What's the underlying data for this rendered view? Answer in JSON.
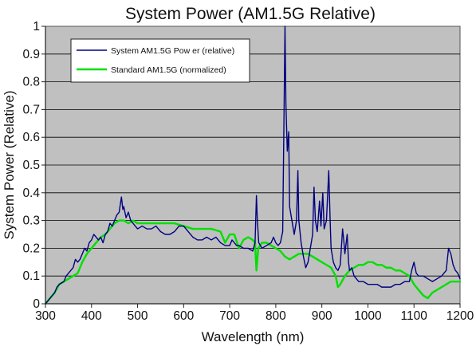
{
  "chart_data": {
    "type": "line",
    "title": "System Power (AM1.5G Relative)",
    "xlabel": "Wavelength (nm)",
    "ylabel": "System Power (Relative)",
    "xlim": [
      300,
      1200
    ],
    "ylim": [
      0,
      1
    ],
    "x_ticks": [
      300,
      400,
      500,
      600,
      700,
      800,
      900,
      1000,
      1100,
      1200
    ],
    "x_tick_labels": [
      "300",
      "400",
      "500",
      "600",
      "700",
      "800",
      "900",
      "1000",
      "1100",
      "1200"
    ],
    "y_ticks": [
      0,
      0.1,
      0.2,
      0.3,
      0.4,
      0.5,
      0.6,
      0.7,
      0.8,
      0.9,
      1
    ],
    "y_tick_labels": [
      "0",
      "0.1",
      "0.2",
      "0.3",
      "0.4",
      "0.5",
      "0.6",
      "0.7",
      "0.8",
      "0.9",
      "1"
    ],
    "grid": "horizontal",
    "plot_background": "#c0c0c0",
    "legend_position": "top-left",
    "series": [
      {
        "name": "System AM1.5G Pow er (relative)",
        "color": "#000080",
        "points": [
          [
            300,
            0.0
          ],
          [
            305,
            0.01
          ],
          [
            310,
            0.02
          ],
          [
            315,
            0.03
          ],
          [
            320,
            0.04
          ],
          [
            325,
            0.06
          ],
          [
            330,
            0.07
          ],
          [
            335,
            0.075
          ],
          [
            340,
            0.08
          ],
          [
            345,
            0.1
          ],
          [
            350,
            0.11
          ],
          [
            355,
            0.12
          ],
          [
            360,
            0.13
          ],
          [
            365,
            0.16
          ],
          [
            370,
            0.15
          ],
          [
            375,
            0.16
          ],
          [
            380,
            0.18
          ],
          [
            385,
            0.2
          ],
          [
            390,
            0.19
          ],
          [
            395,
            0.22
          ],
          [
            400,
            0.23
          ],
          [
            405,
            0.25
          ],
          [
            410,
            0.24
          ],
          [
            415,
            0.23
          ],
          [
            420,
            0.24
          ],
          [
            425,
            0.22
          ],
          [
            430,
            0.25
          ],
          [
            435,
            0.26
          ],
          [
            440,
            0.29
          ],
          [
            445,
            0.28
          ],
          [
            450,
            0.3
          ],
          [
            455,
            0.32
          ],
          [
            460,
            0.33
          ],
          [
            465,
            0.385
          ],
          [
            468,
            0.34
          ],
          [
            470,
            0.35
          ],
          [
            475,
            0.31
          ],
          [
            480,
            0.33
          ],
          [
            485,
            0.3
          ],
          [
            490,
            0.29
          ],
          [
            495,
            0.28
          ],
          [
            500,
            0.27
          ],
          [
            510,
            0.28
          ],
          [
            520,
            0.27
          ],
          [
            530,
            0.27
          ],
          [
            540,
            0.28
          ],
          [
            550,
            0.26
          ],
          [
            560,
            0.25
          ],
          [
            570,
            0.25
          ],
          [
            580,
            0.26
          ],
          [
            590,
            0.28
          ],
          [
            600,
            0.28
          ],
          [
            610,
            0.26
          ],
          [
            620,
            0.24
          ],
          [
            630,
            0.23
          ],
          [
            640,
            0.23
          ],
          [
            650,
            0.24
          ],
          [
            660,
            0.23
          ],
          [
            670,
            0.24
          ],
          [
            680,
            0.22
          ],
          [
            690,
            0.21
          ],
          [
            700,
            0.21
          ],
          [
            705,
            0.23
          ],
          [
            710,
            0.22
          ],
          [
            715,
            0.21
          ],
          [
            720,
            0.21
          ],
          [
            730,
            0.2
          ],
          [
            740,
            0.2
          ],
          [
            750,
            0.19
          ],
          [
            755,
            0.22
          ],
          [
            758,
            0.39
          ],
          [
            760,
            0.3
          ],
          [
            763,
            0.22
          ],
          [
            770,
            0.2
          ],
          [
            780,
            0.21
          ],
          [
            790,
            0.22
          ],
          [
            795,
            0.24
          ],
          [
            800,
            0.22
          ],
          [
            805,
            0.21
          ],
          [
            810,
            0.22
          ],
          [
            815,
            0.26
          ],
          [
            818,
            0.7
          ],
          [
            820,
            1.0
          ],
          [
            822,
            0.72
          ],
          [
            825,
            0.55
          ],
          [
            828,
            0.62
          ],
          [
            830,
            0.35
          ],
          [
            835,
            0.3
          ],
          [
            840,
            0.25
          ],
          [
            845,
            0.3
          ],
          [
            848,
            0.48
          ],
          [
            850,
            0.3
          ],
          [
            855,
            0.22
          ],
          [
            860,
            0.17
          ],
          [
            865,
            0.13
          ],
          [
            870,
            0.15
          ],
          [
            875,
            0.2
          ],
          [
            880,
            0.25
          ],
          [
            883,
            0.42
          ],
          [
            886,
            0.3
          ],
          [
            890,
            0.26
          ],
          [
            895,
            0.37
          ],
          [
            898,
            0.28
          ],
          [
            902,
            0.4
          ],
          [
            905,
            0.27
          ],
          [
            910,
            0.3
          ],
          [
            915,
            0.48
          ],
          [
            918,
            0.3
          ],
          [
            920,
            0.2
          ],
          [
            925,
            0.15
          ],
          [
            930,
            0.13
          ],
          [
            935,
            0.12
          ],
          [
            940,
            0.14
          ],
          [
            945,
            0.27
          ],
          [
            948,
            0.22
          ],
          [
            950,
            0.18
          ],
          [
            955,
            0.25
          ],
          [
            958,
            0.15
          ],
          [
            960,
            0.12
          ],
          [
            965,
            0.13
          ],
          [
            970,
            0.1
          ],
          [
            975,
            0.09
          ],
          [
            980,
            0.08
          ],
          [
            990,
            0.08
          ],
          [
            1000,
            0.07
          ],
          [
            1010,
            0.07
          ],
          [
            1020,
            0.07
          ],
          [
            1030,
            0.06
          ],
          [
            1040,
            0.06
          ],
          [
            1050,
            0.06
          ],
          [
            1060,
            0.07
          ],
          [
            1070,
            0.07
          ],
          [
            1080,
            0.08
          ],
          [
            1090,
            0.08
          ],
          [
            1095,
            0.12
          ],
          [
            1100,
            0.15
          ],
          [
            1105,
            0.11
          ],
          [
            1110,
            0.1
          ],
          [
            1120,
            0.1
          ],
          [
            1130,
            0.09
          ],
          [
            1140,
            0.08
          ],
          [
            1150,
            0.09
          ],
          [
            1160,
            0.1
          ],
          [
            1170,
            0.12
          ],
          [
            1175,
            0.2
          ],
          [
            1180,
            0.18
          ],
          [
            1185,
            0.14
          ],
          [
            1190,
            0.12
          ],
          [
            1195,
            0.11
          ],
          [
            1200,
            0.09
          ]
        ]
      },
      {
        "name": "Standard AM1.5G (normalized)",
        "color": "#00e000",
        "points": [
          [
            300,
            0.0
          ],
          [
            310,
            0.02
          ],
          [
            320,
            0.04
          ],
          [
            330,
            0.07
          ],
          [
            340,
            0.08
          ],
          [
            350,
            0.09
          ],
          [
            360,
            0.1
          ],
          [
            370,
            0.11
          ],
          [
            380,
            0.15
          ],
          [
            390,
            0.18
          ],
          [
            400,
            0.2
          ],
          [
            410,
            0.22
          ],
          [
            420,
            0.24
          ],
          [
            430,
            0.25
          ],
          [
            440,
            0.27
          ],
          [
            450,
            0.29
          ],
          [
            460,
            0.3
          ],
          [
            470,
            0.3
          ],
          [
            480,
            0.29
          ],
          [
            490,
            0.3
          ],
          [
            500,
            0.29
          ],
          [
            520,
            0.29
          ],
          [
            540,
            0.29
          ],
          [
            560,
            0.29
          ],
          [
            580,
            0.29
          ],
          [
            600,
            0.28
          ],
          [
            620,
            0.27
          ],
          [
            640,
            0.27
          ],
          [
            660,
            0.27
          ],
          [
            680,
            0.26
          ],
          [
            690,
            0.22
          ],
          [
            700,
            0.25
          ],
          [
            710,
            0.25
          ],
          [
            720,
            0.2
          ],
          [
            730,
            0.23
          ],
          [
            740,
            0.24
          ],
          [
            750,
            0.23
          ],
          [
            755,
            0.22
          ],
          [
            758,
            0.12
          ],
          [
            762,
            0.2
          ],
          [
            770,
            0.22
          ],
          [
            780,
            0.22
          ],
          [
            790,
            0.21
          ],
          [
            800,
            0.2
          ],
          [
            810,
            0.19
          ],
          [
            820,
            0.17
          ],
          [
            830,
            0.16
          ],
          [
            840,
            0.17
          ],
          [
            850,
            0.18
          ],
          [
            860,
            0.18
          ],
          [
            870,
            0.18
          ],
          [
            880,
            0.17
          ],
          [
            890,
            0.16
          ],
          [
            900,
            0.15
          ],
          [
            910,
            0.14
          ],
          [
            920,
            0.13
          ],
          [
            930,
            0.1
          ],
          [
            935,
            0.06
          ],
          [
            940,
            0.07
          ],
          [
            950,
            0.1
          ],
          [
            960,
            0.12
          ],
          [
            970,
            0.13
          ],
          [
            980,
            0.14
          ],
          [
            990,
            0.14
          ],
          [
            1000,
            0.15
          ],
          [
            1010,
            0.15
          ],
          [
            1020,
            0.14
          ],
          [
            1030,
            0.14
          ],
          [
            1040,
            0.13
          ],
          [
            1050,
            0.13
          ],
          [
            1060,
            0.12
          ],
          [
            1070,
            0.12
          ],
          [
            1080,
            0.11
          ],
          [
            1090,
            0.1
          ],
          [
            1100,
            0.07
          ],
          [
            1110,
            0.05
          ],
          [
            1120,
            0.03
          ],
          [
            1130,
            0.02
          ],
          [
            1140,
            0.04
          ],
          [
            1150,
            0.05
          ],
          [
            1160,
            0.06
          ],
          [
            1170,
            0.07
          ],
          [
            1180,
            0.08
          ],
          [
            1190,
            0.08
          ],
          [
            1200,
            0.08
          ]
        ]
      }
    ]
  }
}
